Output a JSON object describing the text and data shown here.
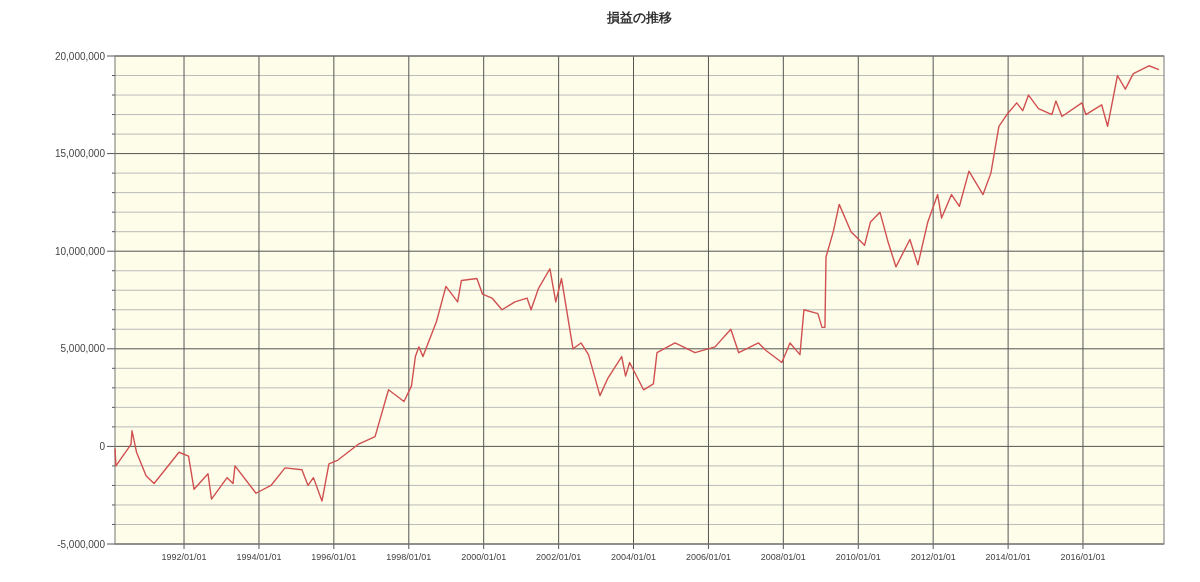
{
  "chart_data": {
    "type": "line",
    "title": "損益の推移",
    "x": [
      "1990-02-27",
      "1990-03-08",
      "1990-08-02",
      "1990-08-12",
      "1990-09-25",
      "1990-12-27",
      "1991-03-15",
      "1991-11-13",
      "1992-02-14",
      "1992-04-08",
      "1992-08-22",
      "1992-09-25",
      "1993-02-24",
      "1993-04-23",
      "1993-05-12",
      "1993-12-03",
      "1994-04-28",
      "1994-09-12",
      "1995-02-24",
      "1995-04-24",
      "1995-06-16",
      "1995-09-07",
      "1995-11-14",
      "1996-02-10",
      "1996-08-24",
      "1997-02-06",
      "1997-06-17",
      "1997-11-15",
      "1998-01-27",
      "1998-03-06",
      "1998-04-10",
      "1998-05-19",
      "1998-09-28",
      "1998-12-29",
      "1999-04-22",
      "1999-05-29",
      "1999-10-27",
      "1999-12-21",
      "2000-03-22",
      "2000-06-28",
      "2000-11-01",
      "2001-02-27",
      "2001-04-07",
      "2001-06-19",
      "2001-10-08",
      "2001-12-04",
      "2002-01-29",
      "2002-05-21",
      "2002-08-07",
      "2002-10-19",
      "2003-02-08",
      "2003-04-27",
      "2003-09-08",
      "2003-10-16",
      "2003-11-24",
      "2004-04-08",
      "2004-07-13",
      "2004-08-17",
      "2005-02-09",
      "2005-08-23",
      "2006-03-06",
      "2006-08-07",
      "2006-10-23",
      "2007-05-04",
      "2007-07-19",
      "2007-12-18",
      "2008-03-06",
      "2008-06-11",
      "2008-07-20",
      "2008-12-03",
      "2009-01-12",
      "2009-02-10",
      "2009-02-20",
      "2009-05-02",
      "2009-06-29",
      "2009-10-22",
      "2010-03-03",
      "2010-04-30",
      "2010-07-31",
      "2010-10-17",
      "2011-01-03",
      "2011-05-19",
      "2011-08-05",
      "2011-11-10",
      "2012-02-14",
      "2012-03-23",
      "2012-06-28",
      "2012-09-13",
      "2012-12-15",
      "2013-05-01",
      "2013-07-17",
      "2013-10-03",
      "2013-12-20",
      "2014-03-26",
      "2014-05-23",
      "2014-07-19",
      "2014-10-24",
      "2015-03-04",
      "2015-04-12",
      "2015-06-10",
      "2015-12-21",
      "2016-01-29",
      "2016-07-01",
      "2016-08-28",
      "2016-12-02",
      "2017-02-17",
      "2017-05-06",
      "2017-10-05",
      "2018-01-11"
    ],
    "series": [
      {
        "color": "#d05050",
        "values": [
          -100000,
          -1000000,
          100000,
          800000,
          -300000,
          -1500000,
          -1900000,
          -300000,
          -500000,
          -2200000,
          -1400000,
          -2700000,
          -1600000,
          -1900000,
          -1000000,
          -2400000,
          -2000000,
          -1100000,
          -1200000,
          -2000000,
          -1600000,
          -2800000,
          -900000,
          -700000,
          100000,
          500000,
          2900000,
          2300000,
          3100000,
          4600000,
          5100000,
          4600000,
          6400000,
          8200000,
          7400000,
          8500000,
          8600000,
          7800000,
          7600000,
          7000000,
          7400000,
          7600000,
          7000000,
          8100000,
          9100000,
          7400000,
          8600000,
          5000000,
          5300000,
          4700000,
          2600000,
          3500000,
          4600000,
          3600000,
          4300000,
          2900000,
          3200000,
          4800000,
          5300000,
          4800000,
          5100000,
          6000000,
          4800000,
          5300000,
          4900000,
          4300000,
          5300000,
          4700000,
          7000000,
          6800000,
          6100000,
          6100000,
          9700000,
          11000000,
          12400000,
          11000000,
          10300000,
          11500000,
          12000000,
          10500000,
          9200000,
          10600000,
          9300000,
          11500000,
          12900000,
          11700000,
          12900000,
          12300000,
          14100000,
          12900000,
          14000000,
          16400000,
          17000000,
          17600000,
          17200000,
          18000000,
          17300000,
          17000000,
          17700000,
          16900000,
          17600000,
          17000000,
          17500000,
          16400000,
          19000000,
          18300000,
          19100000,
          19500000,
          19300000
        ]
      }
    ],
    "xlim": [
      "1990-02-27",
      "2018-03-01"
    ],
    "xticks": [
      {
        "value": "1992-01-01",
        "label": "1992/01/01"
      },
      {
        "value": "1994-01-01",
        "label": "1994/01/01"
      },
      {
        "value": "1996-01-01",
        "label": "1996/01/01"
      },
      {
        "value": "1998-01-01",
        "label": "1998/01/01"
      },
      {
        "value": "2000-01-01",
        "label": "2000/01/01"
      },
      {
        "value": "2002-01-01",
        "label": "2002/01/01"
      },
      {
        "value": "2004-01-01",
        "label": "2004/01/01"
      },
      {
        "value": "2006-01-01",
        "label": "2006/01/01"
      },
      {
        "value": "2008-01-01",
        "label": "2008/01/01"
      },
      {
        "value": "2010-01-01",
        "label": "2010/01/01"
      },
      {
        "value": "2012-01-01",
        "label": "2012/01/01"
      },
      {
        "value": "2014-01-01",
        "label": "2014/01/01"
      },
      {
        "value": "2016-01-01",
        "label": "2016/01/01"
      }
    ],
    "ylim": [
      -5000000,
      20000000
    ],
    "yticks": [
      {
        "value": -5000000,
        "label": "-5,000,000"
      },
      {
        "value": -4000000,
        "label": null
      },
      {
        "value": -3000000,
        "label": null
      },
      {
        "value": -2000000,
        "label": null
      },
      {
        "value": -1000000,
        "label": null
      },
      {
        "value": 0,
        "label": "0"
      },
      {
        "value": 1000000,
        "label": null
      },
      {
        "value": 2000000,
        "label": null
      },
      {
        "value": 3000000,
        "label": null
      },
      {
        "value": 4000000,
        "label": null
      },
      {
        "value": 5000000,
        "label": "5,000,000"
      },
      {
        "value": 6000000,
        "label": null
      },
      {
        "value": 7000000,
        "label": null
      },
      {
        "value": 8000000,
        "label": null
      },
      {
        "value": 9000000,
        "label": null
      },
      {
        "value": 10000000,
        "label": "10,000,000"
      },
      {
        "value": 11000000,
        "label": null
      },
      {
        "value": 12000000,
        "label": null
      },
      {
        "value": 13000000,
        "label": null
      },
      {
        "value": 14000000,
        "label": null
      },
      {
        "value": 15000000,
        "label": "15,000,000"
      },
      {
        "value": 16000000,
        "label": null
      },
      {
        "value": 17000000,
        "label": null
      },
      {
        "value": 18000000,
        "label": null
      },
      {
        "value": 19000000,
        "label": null
      },
      {
        "value": 20000000,
        "label": "20,000,000"
      }
    ],
    "grid": true,
    "marker": "none",
    "line_style": "solid"
  }
}
